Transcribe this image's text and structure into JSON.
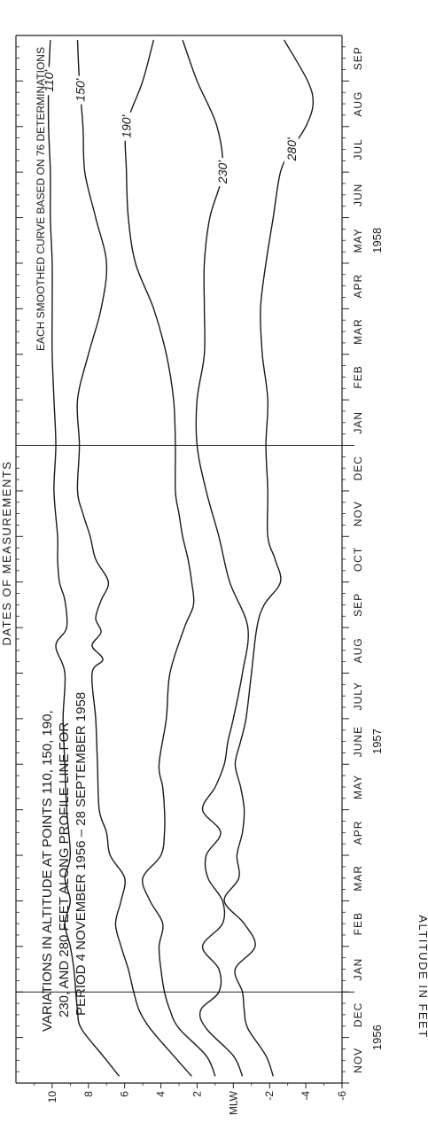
{
  "chart_data": {
    "type": "line",
    "title": "VARIATIONS IN ALTITUDE AT POINTS 110, 150, 190, 230, AND 280 FEET ALONG PROFILE LINE FOR PERIOD 4 NOVEMBER 1956 – 28 SEPTEMBER 1958",
    "title_lines": [
      "VARIATIONS IN ALTITUDE AT POINTS 110, 150, 190,",
      "230, AND 280 FEET ALONG PROFILE LINE FOR",
      "PERIOD 4 NOVEMBER 1956 – 28 SEPTEMBER 1958"
    ],
    "note": "EACH SMOOTHED CURVE BASED ON 76 DETERMINATIONS",
    "xlabel": "DATES OF MEASUREMENTS",
    "ylabel": "ALTITUDE IN FEET",
    "x_unit": "months since 1 Nov 1956",
    "xlim": [
      0,
      23
    ],
    "ylim": [
      -6,
      12
    ],
    "month_labels": [
      "NOV",
      "DEC",
      "JAN",
      "FEB",
      "MAR",
      "APR",
      "MAY",
      "JUNE",
      "JULY",
      "AUG",
      "SEP",
      "OCT",
      "NOV",
      "DEC",
      "JAN",
      "FEB",
      "MAR",
      "APR",
      "MAY",
      "JUN",
      "JUL",
      "AUG",
      "SEP"
    ],
    "year_labels": [
      {
        "text": "1956",
        "at": 1.0
      },
      {
        "text": "1957",
        "at": 7.5
      },
      {
        "text": "1958",
        "at": 18.5
      }
    ],
    "year_dividers": [
      2,
      14
    ],
    "y_ticks": [
      {
        "value": 10,
        "label": "10"
      },
      {
        "value": 8,
        "label": "8"
      },
      {
        "value": 6,
        "label": "6"
      },
      {
        "value": 4,
        "label": "4"
      },
      {
        "value": 2,
        "label": "2"
      },
      {
        "value": 0,
        "label": "MLW"
      },
      {
        "value": -2,
        "label": "-2"
      },
      {
        "value": -4,
        "label": "-4"
      },
      {
        "value": -6,
        "label": "-6"
      }
    ],
    "grid": false,
    "series": [
      {
        "name": "110'",
        "label_at": 22.0,
        "x": [
          0.15,
          0.6,
          1.2,
          1.6,
          2.0,
          2.5,
          3.0,
          3.5,
          4.0,
          4.5,
          5.0,
          6.0,
          7.0,
          8.0,
          9.0,
          9.6,
          10.0,
          10.6,
          11.0,
          11.5,
          12.0,
          13.0,
          14.0,
          15.0,
          16.0,
          17.0,
          18.0,
          19.0,
          20.0,
          21.0,
          22.0,
          22.9
        ],
        "y": [
          6.3,
          7.2,
          8.4,
          8.6,
          8.7,
          8.8,
          9.0,
          9.3,
          9.0,
          9.3,
          9.0,
          9.2,
          9.3,
          9.4,
          9.3,
          9.8,
          9.2,
          9.3,
          9.6,
          9.7,
          9.7,
          9.9,
          9.8,
          9.9,
          10.0,
          10.0,
          10.0,
          10.1,
          10.1,
          10.2,
          10.2,
          10.1
        ]
      },
      {
        "name": "150'",
        "label_at": 21.8,
        "x": [
          0.15,
          0.6,
          1.2,
          1.6,
          2.0,
          2.5,
          3.0,
          3.5,
          4.0,
          4.5,
          5.0,
          5.5,
          6.0,
          7.0,
          8.0,
          9.0,
          9.3,
          9.6,
          9.9,
          10.2,
          10.6,
          11.0,
          11.5,
          12.0,
          12.5,
          13.0,
          14.0,
          15.0,
          16.0,
          17.0,
          18.0,
          19.0,
          20.0,
          21.0,
          22.0,
          22.9
        ],
        "y": [
          2.3,
          3.3,
          4.6,
          5.2,
          5.5,
          5.8,
          6.2,
          6.5,
          6.2,
          6.0,
          6.8,
          7.0,
          7.4,
          7.5,
          7.6,
          7.8,
          7.2,
          7.8,
          7.3,
          7.6,
          7.3,
          6.9,
          7.6,
          7.9,
          8.3,
          8.6,
          8.5,
          8.6,
          8.0,
          7.3,
          7.0,
          7.6,
          8.2,
          8.3,
          8.5,
          8.6
        ]
      },
      {
        "name": "190'",
        "label_at": 21.0,
        "x": [
          0.15,
          0.6,
          1.2,
          1.6,
          2.0,
          2.5,
          3.0,
          3.5,
          4.0,
          4.5,
          5.0,
          5.5,
          6.0,
          6.5,
          7.0,
          8.0,
          9.0,
          10.0,
          10.5,
          11.0,
          11.5,
          12.0,
          12.5,
          13.0,
          14.0,
          15.0,
          16.0,
          17.0,
          18.0,
          19.0,
          20.0,
          21.0,
          22.0,
          22.9
        ],
        "y": [
          1.0,
          1.5,
          3.0,
          3.5,
          3.8,
          4.0,
          4.1,
          3.9,
          4.6,
          5.0,
          4.0,
          3.8,
          3.8,
          3.9,
          4.1,
          3.7,
          3.5,
          2.7,
          2.2,
          2.3,
          2.5,
          2.8,
          3.0,
          3.2,
          3.2,
          3.3,
          3.7,
          4.4,
          5.4,
          5.8,
          5.9,
          5.9,
          5.0,
          4.4
        ]
      },
      {
        "name": "230'",
        "label_at": 20.0,
        "x": [
          0.15,
          0.6,
          1.2,
          1.6,
          2.0,
          2.5,
          3.0,
          3.5,
          4.0,
          4.5,
          5.0,
          5.5,
          6.0,
          6.5,
          7.0,
          7.5,
          8.0,
          9.0,
          10.0,
          11.0,
          12.0,
          13.0,
          14.0,
          15.0,
          16.0,
          17.0,
          18.0,
          19.0,
          20.0,
          21.0,
          22.0,
          22.9
        ],
        "y": [
          -0.5,
          0.0,
          1.5,
          1.8,
          0.8,
          0.8,
          1.7,
          0.6,
          0.6,
          1.4,
          1.5,
          0.7,
          1.7,
          1.0,
          0.5,
          0.3,
          0.0,
          -0.5,
          -0.8,
          0.2,
          0.8,
          1.5,
          2.0,
          2.0,
          1.6,
          1.6,
          1.6,
          1.3,
          0.6,
          0.9,
          2.0,
          2.8
        ]
      },
      {
        "name": "280'",
        "label_at": 20.5,
        "x": [
          0.15,
          0.6,
          1.2,
          1.6,
          2.0,
          2.5,
          3.0,
          3.5,
          4.0,
          4.5,
          5.0,
          5.5,
          6.0,
          6.5,
          7.0,
          7.5,
          8.0,
          9.0,
          10.0,
          10.5,
          11.0,
          11.5,
          12.0,
          13.0,
          14.0,
          15.0,
          16.0,
          17.0,
          18.0,
          19.0,
          20.0,
          20.5,
          21.0,
          21.5,
          22.0,
          22.9
        ],
        "y": [
          -2.2,
          -1.8,
          -0.8,
          -0.6,
          -0.5,
          -0.1,
          -1.2,
          -0.6,
          0.5,
          -0.3,
          -0.2,
          -0.5,
          -0.6,
          -0.4,
          -0.1,
          -0.4,
          -0.7,
          -1.0,
          -1.3,
          -1.7,
          -2.6,
          -2.3,
          -1.9,
          -1.9,
          -1.8,
          -1.9,
          -1.6,
          -1.5,
          -1.8,
          -2.2,
          -2.6,
          -3.2,
          -4.0,
          -4.4,
          -4.1,
          -2.8
        ]
      }
    ]
  }
}
